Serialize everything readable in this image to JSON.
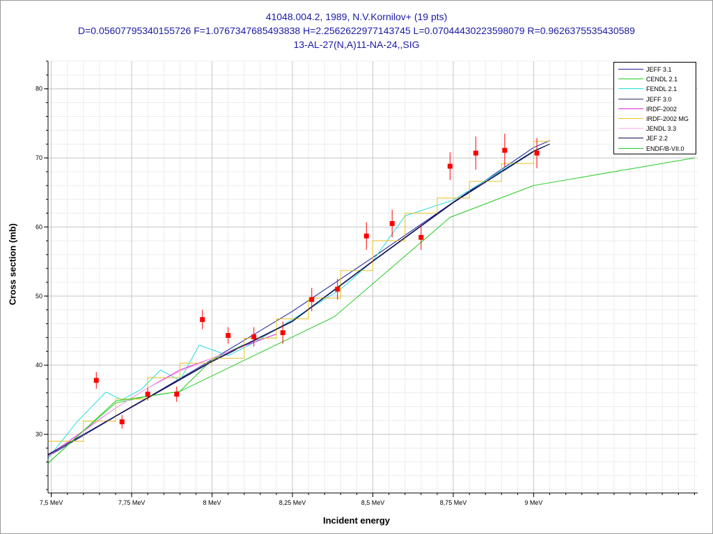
{
  "title": {
    "line1": "41048.004.2, 1989, N.V.Kornilov+ (19 pts)",
    "line2": "D=0.05607795340155726 F=1.0767347685493838 H=2.2562622977143745 L=0.07044430223598079 R=0.9626375535430589",
    "line3": "13-AL-27(N,A)11-NA-24,,SIG"
  },
  "colors": {
    "title": "#1a1aa6",
    "points": "#ff0000",
    "grid_major": "#c8c8c8",
    "grid_minor": "#ececec"
  },
  "chart_data": {
    "type": "scatter",
    "xlabel": "Incident energy",
    "ylabel": "Cross section (mb)",
    "xlim": [
      7.49,
      9.51
    ],
    "ylim": [
      21.5,
      84.0
    ],
    "x_ticks": [
      7.5,
      7.75,
      8.0,
      8.25,
      8.5,
      8.75,
      9.0
    ],
    "x_tick_labels": [
      "7,5 MeV",
      "7,75 MeV",
      "8 MeV",
      "8,25 MeV",
      "8,5 MeV",
      "8,75 MeV",
      "9 MeV"
    ],
    "y_ticks": [
      30,
      40,
      50,
      60,
      70,
      80
    ],
    "y_tick_labels": [
      "30",
      "40",
      "50",
      "60",
      "70",
      "80"
    ],
    "grid": true,
    "legend_position": "top-right",
    "points": [
      {
        "x": 7.64,
        "y": 37.8,
        "err": 1.2
      },
      {
        "x": 7.72,
        "y": 31.8,
        "err": 1.0
      },
      {
        "x": 7.8,
        "y": 35.8,
        "err": 0.9
      },
      {
        "x": 7.89,
        "y": 35.8,
        "err": 1.1
      },
      {
        "x": 7.97,
        "y": 46.6,
        "err": 1.4
      },
      {
        "x": 8.05,
        "y": 44.3,
        "err": 1.2
      },
      {
        "x": 8.13,
        "y": 44.1,
        "err": 1.4
      },
      {
        "x": 8.22,
        "y": 44.7,
        "err": 1.6
      },
      {
        "x": 8.31,
        "y": 49.5,
        "err": 1.7
      },
      {
        "x": 8.39,
        "y": 51.0,
        "err": 1.5
      },
      {
        "x": 8.48,
        "y": 58.7,
        "err": 2.0
      },
      {
        "x": 8.56,
        "y": 60.5,
        "err": 2.0
      },
      {
        "x": 8.65,
        "y": 58.5,
        "err": 1.8
      },
      {
        "x": 8.74,
        "y": 68.8,
        "err": 2.0
      },
      {
        "x": 8.82,
        "y": 70.7,
        "err": 2.4
      },
      {
        "x": 8.91,
        "y": 71.1,
        "err": 2.4
      },
      {
        "x": 9.01,
        "y": 70.7,
        "err": 2.2
      }
    ],
    "series": [
      {
        "name": "JEFF 3.1",
        "color": "#1c1c9c",
        "step": false,
        "x": [
          7.49,
          8.0,
          8.25,
          8.5,
          8.75,
          9.0,
          9.05
        ],
        "y": [
          26.8,
          40.8,
          47.8,
          55.6,
          63.6,
          71.5,
          72.5
        ]
      },
      {
        "name": "CENDL 2.1",
        "color": "#22cc22",
        "step": false,
        "x": [
          7.49,
          7.6,
          7.7,
          7.8,
          7.9,
          8.0,
          8.1
        ],
        "y": [
          25.8,
          30.5,
          34.5,
          35.5,
          36.2,
          40.8,
          43.0
        ]
      },
      {
        "name": "FENDL 2.1",
        "color": "#22dddd",
        "step": false,
        "x": [
          7.49,
          7.58,
          7.67,
          7.72,
          7.78,
          7.84,
          7.9,
          7.96,
          8.05,
          8.12,
          8.25,
          8.4,
          8.5,
          8.6,
          8.75,
          9.0,
          9.05
        ],
        "y": [
          26.5,
          31.8,
          36.1,
          35.0,
          36.5,
          39.3,
          37.8,
          42.9,
          41.4,
          43.0,
          46.6,
          51.0,
          55.1,
          61.6,
          63.9,
          71.0,
          72.0
        ]
      },
      {
        "name": "JEFF 3.0",
        "color": "#2a2a6e",
        "step": false,
        "x": [
          7.49,
          7.75,
          8.0,
          8.25,
          8.5,
          8.75,
          9.0,
          9.05
        ],
        "y": [
          27.1,
          33.9,
          40.5,
          46.3,
          55.0,
          63.5,
          70.9,
          72.0
        ]
      },
      {
        "name": "IRDF-2002",
        "color": "#dd22dd",
        "step": false,
        "x": [
          7.49,
          7.6,
          7.7,
          7.8,
          7.9,
          8.0,
          8.1,
          8.2
        ],
        "y": [
          26.9,
          30.5,
          33.8,
          36.7,
          39.3,
          41.0,
          42.8,
          44.5
        ]
      },
      {
        "name": "IRDF-2002 MG",
        "color": "#e8c020",
        "step": true,
        "x": [
          7.49,
          7.6,
          7.7,
          7.8,
          7.9,
          8.0,
          8.1,
          8.2,
          8.3,
          8.4,
          8.5,
          8.6,
          8.7,
          8.8,
          8.9,
          9.0,
          9.05
        ],
        "y": [
          29.0,
          31.9,
          35.1,
          38.2,
          40.3,
          41.0,
          43.9,
          46.7,
          49.7,
          53.7,
          58.0,
          62.0,
          64.2,
          66.6,
          69.2,
          72.4,
          72.4
        ]
      },
      {
        "name": "JENDL 3.3",
        "color": "#ffaaee",
        "step": false,
        "x": [
          7.49,
          7.6,
          7.7,
          7.8,
          7.9,
          8.0,
          8.1
        ],
        "y": [
          26.8,
          30.4,
          33.8,
          36.7,
          39.1,
          41.0,
          42.7
        ]
      },
      {
        "name": "JEF 2.2",
        "color": "#0a0a50",
        "step": false,
        "x": [
          7.49,
          7.75,
          8.0,
          8.25,
          8.5,
          8.75,
          9.0,
          9.05
        ],
        "y": [
          27.0,
          34.0,
          40.6,
          46.4,
          55.1,
          63.6,
          71.0,
          72.0
        ]
      },
      {
        "name": "ENDF/B-VII.0",
        "color": "#22cc22",
        "step": false,
        "x": [
          7.49,
          7.7,
          7.9,
          8.38,
          8.74,
          9.0,
          9.5
        ],
        "y": [
          25.8,
          34.8,
          36.2,
          47.0,
          61.4,
          66.0,
          70.0
        ]
      }
    ]
  }
}
